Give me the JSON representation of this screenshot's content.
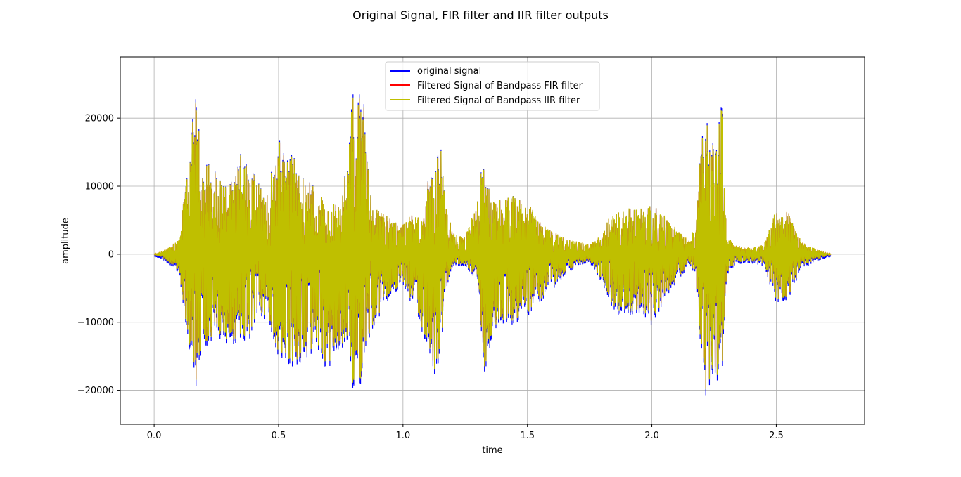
{
  "chart_data": {
    "type": "line",
    "title": "Original Signal, FIR filter and IIR filter outputs",
    "xlabel": "time",
    "ylabel": "amplitude",
    "xlim": [
      -0.136,
      2.855
    ],
    "ylim": [
      -25000,
      29000
    ],
    "xticks": [
      0.0,
      0.5,
      1.0,
      1.5,
      2.0,
      2.5
    ],
    "xtick_labels": [
      "0.0",
      "0.5",
      "1.0",
      "1.5",
      "2.0",
      "2.5"
    ],
    "yticks": [
      -20000,
      -10000,
      0,
      10000,
      20000
    ],
    "ytick_labels": [
      "−20000",
      "−10000",
      "0",
      "10000",
      "20000"
    ],
    "grid": true,
    "legend_position": "upper center",
    "duration": 2.72,
    "envelope": {
      "x": [
        0.0,
        0.05,
        0.1,
        0.13,
        0.15,
        0.17,
        0.19,
        0.21,
        0.25,
        0.3,
        0.35,
        0.4,
        0.45,
        0.5,
        0.52,
        0.56,
        0.6,
        0.65,
        0.7,
        0.72,
        0.75,
        0.78,
        0.8,
        0.82,
        0.84,
        0.86,
        0.88,
        0.9,
        0.92,
        0.95,
        1.0,
        1.05,
        1.08,
        1.1,
        1.13,
        1.15,
        1.17,
        1.2,
        1.25,
        1.3,
        1.32,
        1.34,
        1.36,
        1.4,
        1.45,
        1.5,
        1.55,
        1.6,
        1.65,
        1.7,
        1.75,
        1.8,
        1.85,
        1.9,
        1.95,
        2.0,
        2.05,
        2.1,
        2.15,
        2.18,
        2.2,
        2.22,
        2.24,
        2.26,
        2.28,
        2.3,
        2.33,
        2.38,
        2.45,
        2.5,
        2.55,
        2.6,
        2.65,
        2.72
      ],
      "max": [
        0,
        800,
        2500,
        11500,
        19000,
        26500,
        11000,
        15000,
        12500,
        10000,
        15500,
        13000,
        8500,
        18300,
        15500,
        15000,
        11500,
        10500,
        6500,
        8000,
        7500,
        16500,
        26500,
        24000,
        24500,
        13000,
        6500,
        7000,
        6500,
        5500,
        4500,
        7000,
        5000,
        11000,
        12500,
        17500,
        8000,
        3500,
        2500,
        9000,
        14500,
        11000,
        8000,
        8500,
        9000,
        8000,
        5000,
        3500,
        2500,
        2000,
        1500,
        3000,
        7500,
        7000,
        7000,
        8000,
        6000,
        4000,
        2000,
        5000,
        20500,
        19500,
        21000,
        17000,
        25000,
        3000,
        1500,
        1000,
        1500,
        7000,
        6500,
        2000,
        1000,
        0
      ],
      "min": [
        0,
        -1000,
        -2500,
        -11000,
        -17000,
        -21000,
        -14000,
        -13500,
        -12000,
        -13000,
        -13500,
        -12000,
        -9000,
        -15000,
        -16500,
        -17500,
        -16000,
        -14000,
        -17500,
        -16000,
        -14500,
        -12500,
        -21500,
        -22500,
        -15000,
        -12500,
        -11500,
        -9500,
        -8000,
        -6000,
        -5000,
        -8500,
        -11500,
        -13500,
        -18000,
        -15000,
        -6000,
        -1500,
        -1500,
        -4000,
        -19500,
        -15000,
        -12000,
        -10500,
        -10000,
        -9000,
        -7000,
        -5000,
        -3000,
        -1500,
        -1000,
        -4000,
        -8500,
        -9000,
        -8500,
        -10500,
        -6500,
        -4000,
        -1500,
        -3000,
        -19000,
        -21000,
        -20500,
        -18500,
        -20500,
        -3000,
        -1500,
        -1000,
        -1500,
        -7000,
        -6500,
        -2000,
        -1000,
        0
      ]
    },
    "series": [
      {
        "name": "original signal",
        "color": "#0000ff",
        "scale": 1.0
      },
      {
        "name": "Filtered Signal of Bandpass FIR filter",
        "color": "#ff0000",
        "scale": 0.96
      },
      {
        "name": "Filtered Signal of Bandpass IIR filter",
        "color": "#bfbf00",
        "scale": 0.97
      }
    ]
  }
}
